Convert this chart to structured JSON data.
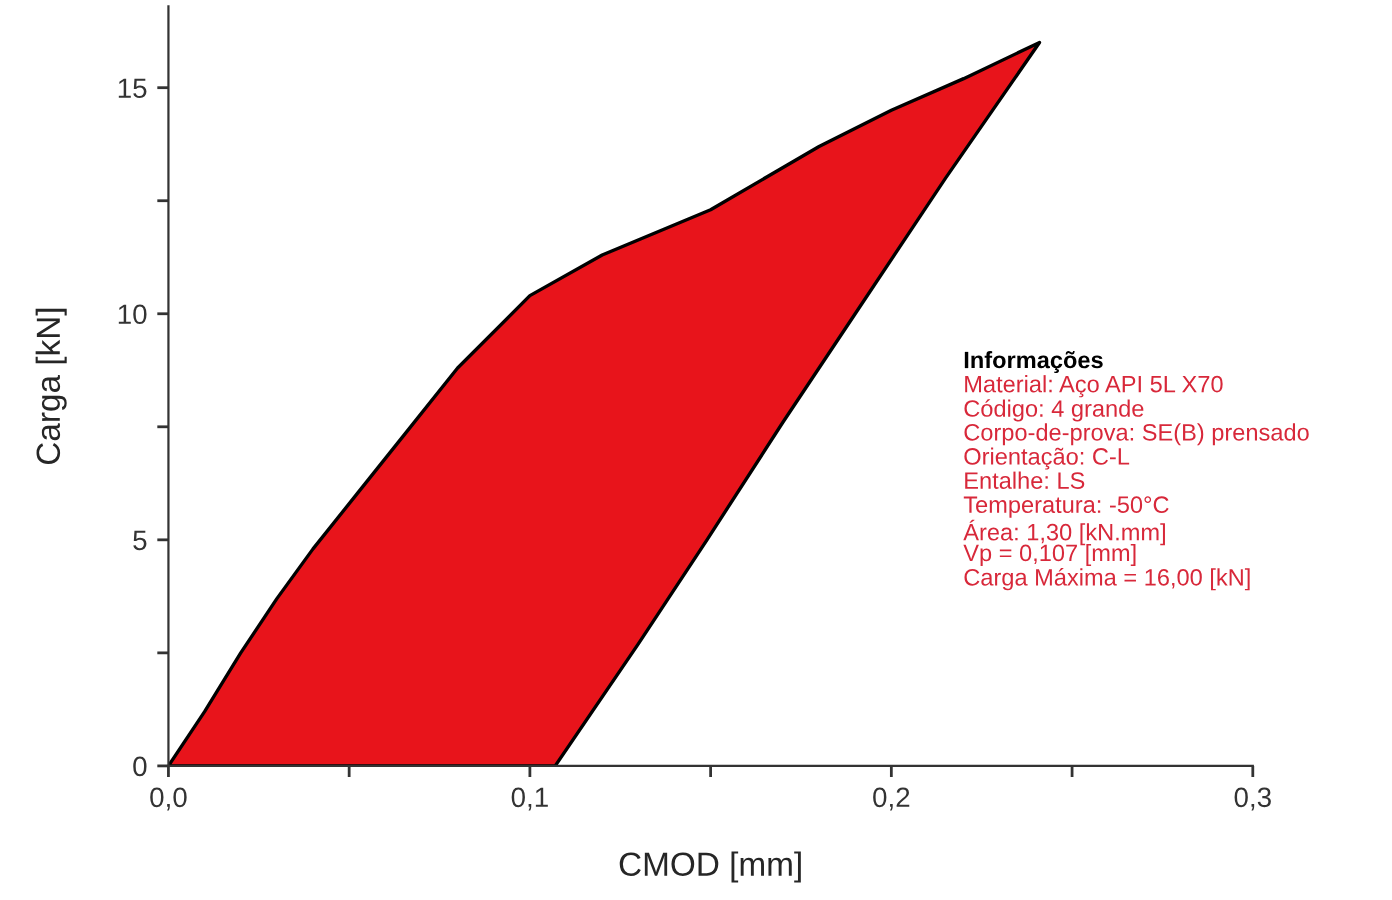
{
  "chart_data": {
    "type": "area",
    "xlabel": "CMOD [mm]",
    "ylabel": "Carga [kN]",
    "series": [
      {
        "color": "#e8141b",
        "x": [
          0,
          0.01,
          0.02,
          0.03,
          0.04,
          0.052,
          0.065,
          0.08,
          0.1,
          0.12,
          0.15,
          0.18,
          0.2,
          0.22,
          0.241,
          0.215,
          0.19,
          0.17,
          0.149,
          0.13,
          0.107
        ],
        "values": [
          0,
          1.2,
          2.5,
          3.7,
          4.8,
          6.0,
          7.3,
          8.8,
          10.4,
          11.3,
          12.3,
          13.7,
          14.5,
          15.2,
          16.0,
          13.0,
          10.0,
          7.6,
          5.0,
          2.7,
          0
        ]
      }
    ],
    "xlim": [
      0,
      0.3
    ],
    "ylim": [
      0,
      16.8
    ],
    "xticks": [
      {
        "value": 0,
        "label": "0,0"
      },
      {
        "value": 0.05,
        "label": null
      },
      {
        "value": 0.1,
        "label": "0,1"
      },
      {
        "value": 0.15,
        "label": null
      },
      {
        "value": 0.2,
        "label": "0,2"
      },
      {
        "value": 0.25,
        "label": null
      },
      {
        "value": 0.3,
        "label": "0,3"
      }
    ],
    "yticks": [
      0,
      {
        "value": 2.5,
        "label": null
      },
      5,
      {
        "value": 7.5,
        "label": null
      },
      10,
      {
        "value": 12.5,
        "label": null
      },
      15
    ],
    "grid": false,
    "legend": false,
    "annotations": [
      "Informações",
      "Material: Aço API 5L X70",
      "Código: 4 grande",
      "Corpo-de-prova: SE(B) prensado",
      "Orientação: C-L",
      "Entalhe: LS",
      "Temperatura: -50°C",
      "Área: 1,30 [kN.mm]",
      "Vp = 0,107 [mm]",
      "Carga Máxima = 16,00 [kN]"
    ]
  }
}
